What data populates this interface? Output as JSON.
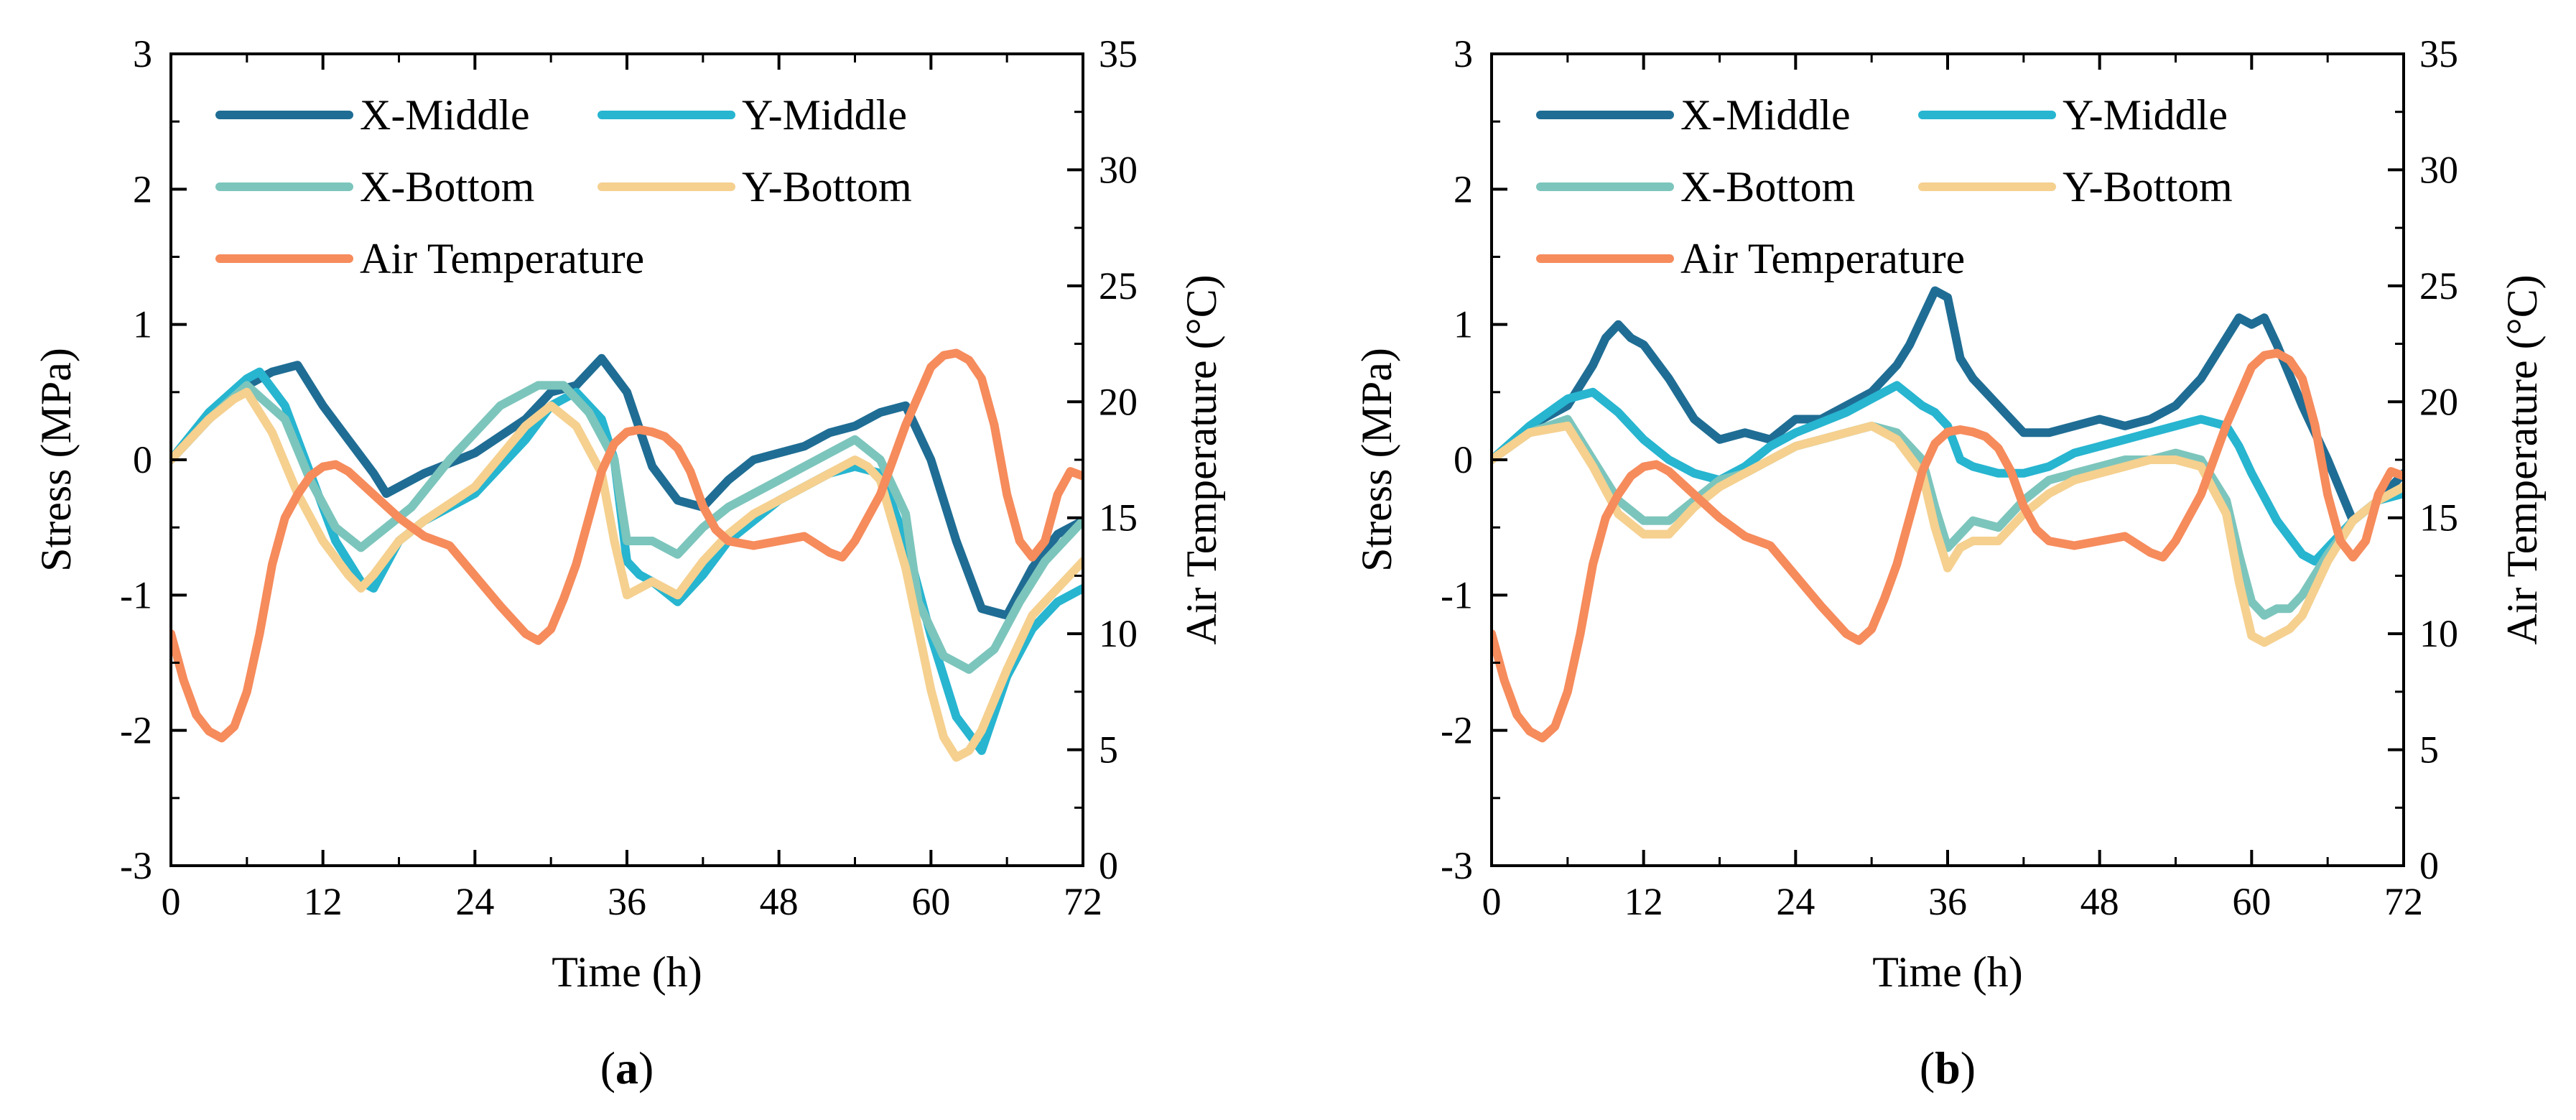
{
  "figure": {
    "colors": {
      "X-Middle": "#1f6d94",
      "Y-Middle": "#27b5d0",
      "X-Bottom": "#7cc5bc",
      "Y-Bottom": "#f5d08f",
      "Air Temperature": "#f68b5c"
    }
  },
  "chart_data": [
    {
      "type": "line",
      "panel_label": "a",
      "title": "",
      "xlabel": "Time (h)",
      "ylabel": "Stress (MPa)",
      "y2label": "Air Temperature (°C)",
      "xlim": [
        0,
        72
      ],
      "ylim": [
        -3,
        3
      ],
      "y2lim": [
        0,
        35
      ],
      "xticks": [
        "0",
        "12",
        "24",
        "36",
        "48",
        "60",
        "72"
      ],
      "yticks": [
        "-3",
        "-2",
        "-1",
        "0",
        "1",
        "2",
        "3"
      ],
      "y2ticks": [
        "0",
        "5",
        "10",
        "15",
        "20",
        "25",
        "30",
        "35"
      ],
      "legend_position": "top-left",
      "legend": [
        "X-Middle",
        "Y-Middle",
        "X-Bottom",
        "Y-Bottom",
        "Air Temperature"
      ],
      "series": [
        {
          "name": "X-Middle",
          "axis": "left",
          "x": [
            0,
            3,
            6,
            8,
            10,
            12,
            14,
            16,
            17,
            20,
            24,
            28,
            30,
            32,
            34,
            36,
            38,
            40,
            42,
            44,
            46,
            48,
            50,
            52,
            54,
            56,
            58,
            60,
            62,
            64,
            66,
            68,
            70,
            72
          ],
          "y": [
            0.0,
            0.3,
            0.55,
            0.65,
            0.7,
            0.4,
            0.15,
            -0.1,
            -0.25,
            -0.1,
            0.05,
            0.3,
            0.5,
            0.55,
            0.75,
            0.5,
            -0.05,
            -0.3,
            -0.35,
            -0.15,
            0.0,
            0.05,
            0.1,
            0.2,
            0.25,
            0.35,
            0.4,
            0.0,
            -0.6,
            -1.1,
            -1.15,
            -0.8,
            -0.55,
            -0.45
          ]
        },
        {
          "name": "Y-Middle",
          "axis": "left",
          "x": [
            0,
            3,
            6,
            7,
            9,
            11,
            13,
            15,
            16,
            18,
            20,
            24,
            28,
            30,
            32,
            34,
            35,
            36,
            37,
            38,
            40,
            42,
            44,
            46,
            48,
            50,
            52,
            54,
            56,
            58,
            60,
            62,
            64,
            66,
            68,
            70,
            72
          ],
          "y": [
            0.0,
            0.35,
            0.6,
            0.65,
            0.4,
            -0.1,
            -0.6,
            -0.9,
            -0.95,
            -0.6,
            -0.45,
            -0.25,
            0.15,
            0.4,
            0.5,
            0.3,
            0.0,
            -0.75,
            -0.85,
            -0.9,
            -1.05,
            -0.85,
            -0.6,
            -0.45,
            -0.3,
            -0.2,
            -0.1,
            -0.05,
            -0.1,
            -0.6,
            -1.3,
            -1.9,
            -2.15,
            -1.6,
            -1.25,
            -1.05,
            -0.95
          ]
        },
        {
          "name": "X-Bottom",
          "axis": "left",
          "x": [
            0,
            3,
            6,
            9,
            11,
            13,
            15,
            17,
            19,
            22,
            26,
            29,
            31,
            33,
            35,
            36,
            38,
            40,
            42,
            44,
            46,
            48,
            50,
            52,
            54,
            56,
            58,
            59,
            61,
            63,
            65,
            67,
            69,
            71,
            72
          ],
          "y": [
            0.0,
            0.3,
            0.55,
            0.3,
            -0.15,
            -0.5,
            -0.65,
            -0.5,
            -0.35,
            0.0,
            0.4,
            0.55,
            0.55,
            0.35,
            0.0,
            -0.6,
            -0.6,
            -0.7,
            -0.5,
            -0.35,
            -0.25,
            -0.15,
            -0.05,
            0.05,
            0.15,
            0.0,
            -0.4,
            -1.05,
            -1.45,
            -1.55,
            -1.4,
            -1.05,
            -0.75,
            -0.55,
            -0.45
          ]
        },
        {
          "name": "Y-Bottom",
          "axis": "left",
          "x": [
            0,
            3,
            5,
            6,
            8,
            10,
            12,
            14,
            15,
            16,
            18,
            20,
            24,
            28,
            30,
            32,
            34,
            35,
            36,
            37,
            38,
            40,
            42,
            44,
            46,
            48,
            50,
            52,
            54,
            55,
            56,
            58,
            60,
            61,
            62,
            63,
            64,
            66,
            68,
            70,
            72
          ],
          "y": [
            0.0,
            0.3,
            0.45,
            0.5,
            0.2,
            -0.25,
            -0.6,
            -0.85,
            -0.95,
            -0.85,
            -0.6,
            -0.45,
            -0.2,
            0.25,
            0.4,
            0.25,
            -0.1,
            -0.6,
            -1.0,
            -0.95,
            -0.9,
            -1.0,
            -0.75,
            -0.55,
            -0.4,
            -0.3,
            -0.2,
            -0.1,
            0.0,
            -0.05,
            -0.15,
            -0.8,
            -1.7,
            -2.05,
            -2.2,
            -2.15,
            -2.0,
            -1.55,
            -1.15,
            -0.95,
            -0.75
          ]
        },
        {
          "name": "Air Temperature",
          "axis": "right",
          "x": [
            0,
            1,
            2,
            3,
            4,
            5,
            6,
            7,
            8,
            9,
            10,
            11,
            12,
            13,
            14,
            16,
            18,
            20,
            22,
            24,
            26,
            28,
            29,
            30,
            31,
            32,
            33,
            34,
            35,
            36,
            37,
            38,
            39,
            40,
            41,
            42,
            43,
            44,
            46,
            48,
            50,
            52,
            53,
            54,
            56,
            58,
            60,
            61,
            62,
            63,
            64,
            65,
            66,
            67,
            68,
            69,
            70,
            71,
            72
          ],
          "y": [
            10,
            8,
            6.5,
            5.8,
            5.5,
            6,
            7.5,
            10,
            13,
            15,
            16,
            16.8,
            17.2,
            17.3,
            17,
            16,
            15,
            14.2,
            13.8,
            12.5,
            11.2,
            10,
            9.7,
            10.2,
            11.5,
            13,
            15,
            17,
            18.2,
            18.7,
            18.8,
            18.7,
            18.5,
            18,
            17,
            15.5,
            14.5,
            14.0,
            13.8,
            14.0,
            14.2,
            13.5,
            13.3,
            14,
            16,
            19,
            21.5,
            22,
            22.1,
            21.8,
            21,
            19,
            16,
            14,
            13.3,
            14,
            16,
            17,
            16.8
          ]
        }
      ]
    },
    {
      "type": "line",
      "panel_label": "b",
      "title": "",
      "xlabel": "Time (h)",
      "ylabel": "Stress (MPa)",
      "y2label": "Air Temperature (°C)",
      "xlim": [
        0,
        72
      ],
      "ylim": [
        -3,
        3
      ],
      "y2lim": [
        0,
        35
      ],
      "xticks": [
        "0",
        "12",
        "24",
        "36",
        "48",
        "60",
        "72"
      ],
      "yticks": [
        "-3",
        "-2",
        "-1",
        "0",
        "1",
        "2",
        "3"
      ],
      "y2ticks": [
        "0",
        "5",
        "10",
        "15",
        "20",
        "25",
        "30",
        "35"
      ],
      "legend_position": "top-left",
      "legend": [
        "X-Middle",
        "Y-Middle",
        "X-Bottom",
        "Y-Bottom",
        "Air Temperature"
      ],
      "series": [
        {
          "name": "X-Middle",
          "axis": "left",
          "x": [
            0,
            2,
            4,
            6,
            8,
            9,
            10,
            11,
            12,
            14,
            16,
            18,
            20,
            22,
            24,
            26,
            28,
            30,
            32,
            33,
            34,
            35,
            36,
            37,
            38,
            40,
            42,
            44,
            46,
            48,
            50,
            52,
            54,
            56,
            58,
            59,
            60,
            61,
            62,
            64,
            66,
            68,
            70,
            72
          ],
          "y": [
            0.0,
            0.15,
            0.3,
            0.4,
            0.7,
            0.9,
            1.0,
            0.9,
            0.85,
            0.6,
            0.3,
            0.15,
            0.2,
            0.15,
            0.3,
            0.3,
            0.4,
            0.5,
            0.7,
            0.85,
            1.05,
            1.25,
            1.2,
            0.75,
            0.6,
            0.4,
            0.2,
            0.2,
            0.25,
            0.3,
            0.25,
            0.3,
            0.4,
            0.6,
            0.9,
            1.05,
            1.0,
            1.05,
            0.85,
            0.4,
            0.0,
            -0.45,
            -0.3,
            -0.1
          ]
        },
        {
          "name": "Y-Middle",
          "axis": "left",
          "x": [
            0,
            3,
            6,
            8,
            10,
            12,
            14,
            16,
            18,
            20,
            22,
            24,
            28,
            30,
            32,
            34,
            35,
            36,
            37,
            38,
            40,
            42,
            44,
            46,
            48,
            50,
            52,
            54,
            56,
            58,
            59,
            60,
            62,
            64,
            65,
            66,
            68,
            70,
            72
          ],
          "y": [
            0.0,
            0.25,
            0.45,
            0.5,
            0.35,
            0.15,
            0.0,
            -0.1,
            -0.15,
            -0.05,
            0.1,
            0.2,
            0.35,
            0.45,
            0.55,
            0.4,
            0.35,
            0.25,
            0.0,
            -0.05,
            -0.1,
            -0.1,
            -0.05,
            0.05,
            0.1,
            0.15,
            0.2,
            0.25,
            0.3,
            0.25,
            0.1,
            -0.1,
            -0.45,
            -0.7,
            -0.75,
            -0.65,
            -0.45,
            -0.3,
            -0.25
          ]
        },
        {
          "name": "X-Bottom",
          "axis": "left",
          "x": [
            0,
            3,
            6,
            8,
            10,
            12,
            14,
            16,
            18,
            20,
            22,
            24,
            26,
            28,
            30,
            32,
            34,
            35,
            36,
            37,
            38,
            40,
            42,
            44,
            46,
            48,
            50,
            52,
            54,
            56,
            58,
            59,
            60,
            61,
            62,
            63,
            64,
            66,
            68,
            70,
            72
          ],
          "y": [
            0.0,
            0.2,
            0.3,
            0.0,
            -0.3,
            -0.45,
            -0.45,
            -0.3,
            -0.15,
            -0.1,
            0.0,
            0.1,
            0.15,
            0.2,
            0.25,
            0.2,
            0.0,
            -0.35,
            -0.65,
            -0.55,
            -0.45,
            -0.5,
            -0.3,
            -0.15,
            -0.1,
            -0.05,
            0.0,
            0.0,
            0.05,
            0.0,
            -0.3,
            -0.7,
            -1.05,
            -1.15,
            -1.1,
            -1.1,
            -1.0,
            -0.7,
            -0.45,
            -0.3,
            -0.2
          ]
        },
        {
          "name": "Y-Bottom",
          "axis": "left",
          "x": [
            0,
            3,
            6,
            8,
            10,
            12,
            14,
            16,
            18,
            20,
            22,
            24,
            26,
            28,
            30,
            32,
            34,
            35,
            36,
            37,
            38,
            40,
            42,
            44,
            46,
            48,
            50,
            52,
            54,
            56,
            58,
            59,
            60,
            61,
            62,
            63,
            64,
            66,
            68,
            70,
            72
          ],
          "y": [
            0.0,
            0.2,
            0.25,
            -0.05,
            -0.4,
            -0.55,
            -0.55,
            -0.35,
            -0.2,
            -0.1,
            0.0,
            0.1,
            0.15,
            0.2,
            0.25,
            0.15,
            -0.1,
            -0.5,
            -0.8,
            -0.65,
            -0.6,
            -0.6,
            -0.4,
            -0.25,
            -0.15,
            -0.1,
            -0.05,
            0.0,
            0.0,
            -0.05,
            -0.4,
            -0.9,
            -1.3,
            -1.35,
            -1.3,
            -1.25,
            -1.15,
            -0.75,
            -0.45,
            -0.3,
            -0.2
          ]
        },
        {
          "name": "Air Temperature",
          "axis": "right",
          "x": [
            0,
            1,
            2,
            3,
            4,
            5,
            6,
            7,
            8,
            9,
            10,
            11,
            12,
            13,
            14,
            16,
            18,
            20,
            22,
            24,
            26,
            28,
            29,
            30,
            31,
            32,
            33,
            34,
            35,
            36,
            37,
            38,
            39,
            40,
            41,
            42,
            43,
            44,
            46,
            48,
            50,
            52,
            53,
            54,
            56,
            58,
            60,
            61,
            62,
            63,
            64,
            65,
            66,
            67,
            68,
            69,
            70,
            71,
            72
          ],
          "y": [
            10,
            8,
            6.5,
            5.8,
            5.5,
            6,
            7.5,
            10,
            13,
            15,
            16,
            16.8,
            17.2,
            17.3,
            17,
            16,
            15,
            14.2,
            13.8,
            12.5,
            11.2,
            10,
            9.7,
            10.2,
            11.5,
            13,
            15,
            17,
            18.2,
            18.7,
            18.8,
            18.7,
            18.5,
            18,
            17,
            15.5,
            14.5,
            14.0,
            13.8,
            14.0,
            14.2,
            13.5,
            13.3,
            14,
            16,
            19,
            21.5,
            22,
            22.1,
            21.8,
            21,
            19,
            16,
            14,
            13.3,
            14,
            16,
            17,
            16.8
          ]
        }
      ]
    }
  ]
}
